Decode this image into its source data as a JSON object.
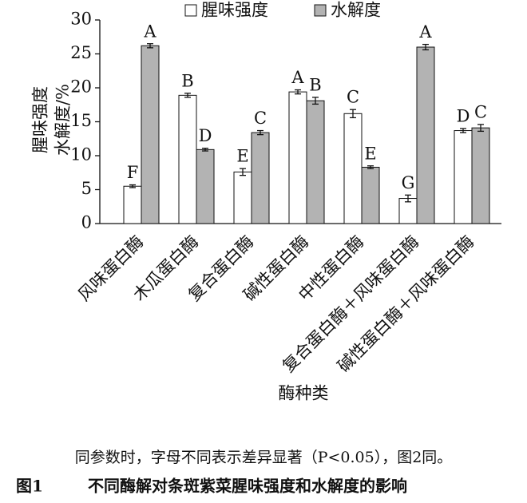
{
  "chart_data": {
    "type": "bar",
    "ylabel": [
      "腥味强度",
      "水解度/%"
    ],
    "xlabel": "酶种类",
    "categories": [
      "风味蛋白酶",
      "木瓜蛋白酶",
      "复合蛋白酶",
      "碱性蛋白酶",
      "中性蛋白酶",
      "复合蛋白酶＋风味蛋白酶",
      "碱性蛋白酶＋风味蛋白酶"
    ],
    "series": [
      {
        "name": "腥味强度",
        "color": "#ffffff",
        "values": [
          5.5,
          18.9,
          7.6,
          19.4,
          16.2,
          3.7,
          13.7
        ],
        "errors": [
          0.2,
          0.3,
          0.5,
          0.3,
          0.6,
          0.5,
          0.3
        ],
        "letters": [
          "F",
          "B",
          "E",
          "A",
          "C",
          "G",
          "D"
        ]
      },
      {
        "name": "水解度",
        "color": "#b3b3b3",
        "values": [
          26.2,
          10.9,
          13.4,
          18.1,
          8.3,
          26.0,
          14.1
        ],
        "errors": [
          0.3,
          0.2,
          0.3,
          0.5,
          0.2,
          0.4,
          0.5
        ],
        "letters": [
          "A",
          "D",
          "C",
          "B",
          "E",
          "A",
          "C"
        ]
      }
    ],
    "ylim": [
      0,
      30
    ],
    "yticks": [
      0,
      5,
      10,
      15,
      20,
      25,
      30
    ],
    "grid": false,
    "legend": "top"
  },
  "note": "同参数时，字母不同表示差异显著（P<0.05），图2同。",
  "figure_number": "图1",
  "figure_title": "不同酶解对条斑紫菜腥味强度和水解度的影响"
}
